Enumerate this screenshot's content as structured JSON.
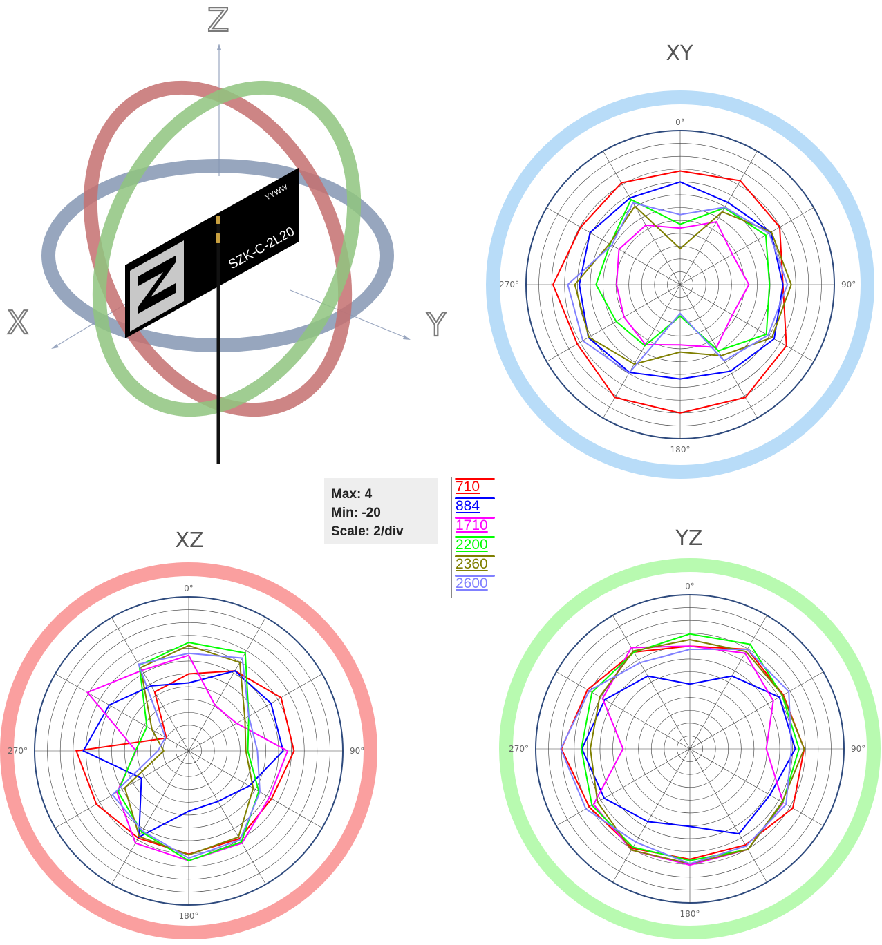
{
  "antenna": {
    "axis_labels": {
      "z": "Z",
      "x": "X",
      "y": "Y"
    },
    "label_text": "SZK-C-2L20",
    "date_code": "YYWW",
    "colors": {
      "z_ring": "#8fc47f",
      "xz_ring": "#c47070",
      "xy_ring": "#8597b3",
      "label": "#000000"
    }
  },
  "scale": {
    "max": "Max: 4",
    "min": "Min: -20",
    "scale": "Scale: 2/div"
  },
  "legend": [
    {
      "label": "710",
      "color": "#ff0000"
    },
    {
      "label": "884",
      "color": "#0000ff"
    },
    {
      "label": "1710",
      "color": "#ff00ff"
    },
    {
      "label": "2200",
      "color": "#00ff00"
    },
    {
      "label": "2360",
      "color": "#7f7f00"
    },
    {
      "label": "2600",
      "color": "#8080ff"
    }
  ],
  "chart_data": [
    {
      "type": "polar-line",
      "title": "XY",
      "angle_labels": [
        "0°",
        "90°",
        "180°",
        "270°"
      ],
      "angles_deg": [
        0,
        30,
        60,
        90,
        120,
        150,
        180,
        210,
        240,
        270,
        300,
        330
      ],
      "rlim": [
        -20,
        4
      ],
      "ring_color": "#b8dcf8",
      "series": [
        {
          "name": "710",
          "values": [
            -2.3,
            -1.3,
            -2.1,
            -4.0,
            -0.9,
            0.3,
            0.0,
            0.3,
            -1.5,
            -0.2,
            -2.1,
            -1.7
          ]
        },
        {
          "name": "884",
          "values": [
            -4.0,
            -5.2,
            -3.7,
            -4.0,
            -3.1,
            -4.4,
            -5.3,
            -4.2,
            -3.5,
            -4.3,
            -3.8,
            -4.4
          ]
        },
        {
          "name": "1710",
          "values": [
            -11.2,
            -8.7,
            -10.6,
            -9.3,
            -10.6,
            -8.7,
            -10.6,
            -9.2,
            -9.9,
            -10.1,
            -9.0,
            -9.3
          ]
        },
        {
          "name": "2200",
          "values": [
            -10.6,
            -6.2,
            -4.6,
            -6.1,
            -4.5,
            -8.1,
            -15.1,
            -9.0,
            -8.5,
            -6.9,
            -7.4,
            -4.7
          ]
        },
        {
          "name": "2360",
          "values": [
            -14.4,
            -6.9,
            -3.6,
            -2.7,
            -3.5,
            -7.2,
            -9.5,
            -5.7,
            -3.6,
            -3.6,
            -7.3,
            -5.9
          ]
        },
        {
          "name": "2600",
          "values": [
            -9.1,
            -6.1,
            -4.0,
            -3.3,
            -4.2,
            -6.3,
            -15.5,
            -4.1,
            -2.5,
            -2.5,
            -7.7,
            -5.3
          ]
        }
      ]
    },
    {
      "type": "polar-line",
      "title": "XZ",
      "angle_labels": [
        "0°",
        "90°",
        "180°",
        "270°"
      ],
      "angles_deg": [
        0,
        30,
        60,
        90,
        120,
        150,
        180,
        210,
        240,
        270,
        300,
        330
      ],
      "rlim": [
        -20,
        4
      ],
      "ring_color": "#fa9f9f",
      "series": [
        {
          "name": "710",
          "values": [
            -8.0,
            -5.6,
            -3.4,
            -3.6,
            -5.1,
            -4.2,
            -3.9,
            -4.3,
            -3.4,
            -2.5,
            -16.0,
            -9.4
          ]
        },
        {
          "name": "884",
          "values": [
            -9.4,
            -5.6,
            -5.2,
            -5.3,
            -9.1,
            -10.9,
            -10.6,
            -4.5,
            -11.5,
            -3.6,
            -5.7,
            -8.3
          ]
        },
        {
          "name": "1710",
          "values": [
            -5.1,
            -11.8,
            -11.4,
            -4.6,
            -5.5,
            -3.4,
            -2.9,
            -3.4,
            -7.1,
            -11.8,
            -1.8,
            -5.5
          ]
        },
        {
          "name": "2200",
          "values": [
            -3.1,
            -2.4,
            -9.2,
            -10.8,
            -7.4,
            -3.6,
            -2.9,
            -5.4,
            -7.3,
            -11.7,
            -12.5,
            -4.6
          ]
        },
        {
          "name": "2360",
          "values": [
            -3.6,
            -4.1,
            -9.9,
            -11.1,
            -8.4,
            -4.5,
            -3.8,
            -4.6,
            -8.5,
            -16.1,
            -13.4,
            -5.0
          ]
        },
        {
          "name": "2600",
          "values": [
            -4.8,
            -3.3,
            -9.2,
            -9.3,
            -7.2,
            -4.0,
            -3.3,
            -5.6,
            -6.3,
            -15.2,
            -15.8,
            -4.4
          ]
        }
      ]
    },
    {
      "type": "polar-line",
      "title": "YZ",
      "angle_labels": [
        "0°",
        "90°",
        "180°",
        "270°"
      ],
      "angles_deg": [
        0,
        30,
        60,
        90,
        120,
        150,
        180,
        210,
        240,
        270,
        300,
        330
      ],
      "rlim": [
        -20,
        4
      ],
      "ring_color": "#b8fab0",
      "series": [
        {
          "name": "710",
          "values": [
            -4.0,
            -2.1,
            -3.2,
            -2.2,
            -1.5,
            -2.7,
            -2.8,
            -2.1,
            -1.9,
            0.0,
            -1.6,
            -2.6
          ]
        },
        {
          "name": "884",
          "values": [
            -9.9,
            -6.9,
            -3.9,
            -3.6,
            -5.6,
            -4.7,
            -7.9,
            -6.9,
            -4.6,
            -3.2,
            -4.7,
            -6.9
          ]
        },
        {
          "name": "1710",
          "values": [
            -4.0,
            -2.8,
            -5.0,
            -8.1,
            -3.2,
            -1.9,
            -1.9,
            -1.8,
            -2.7,
            -9.6,
            -4.3,
            -1.8
          ]
        },
        {
          "name": "2200",
          "values": [
            -2.1,
            -1.2,
            -3.4,
            -3.0,
            -3.3,
            -1.9,
            -2.6,
            -2.3,
            -2.4,
            -3.1,
            -2.4,
            -2.6
          ]
        },
        {
          "name": "2360",
          "values": [
            -3.0,
            -2.5,
            -3.3,
            -2.2,
            -3.4,
            -1.9,
            -2.1,
            -1.8,
            -3.4,
            -4.5,
            -3.8,
            -2.4
          ]
        },
        {
          "name": "2600",
          "values": [
            -4.5,
            -2.1,
            -2.2,
            -4.2,
            -2.7,
            -2.5,
            -2.1,
            -3.2,
            -1.3,
            0.1,
            -1.9,
            -4.5
          ]
        }
      ]
    }
  ]
}
